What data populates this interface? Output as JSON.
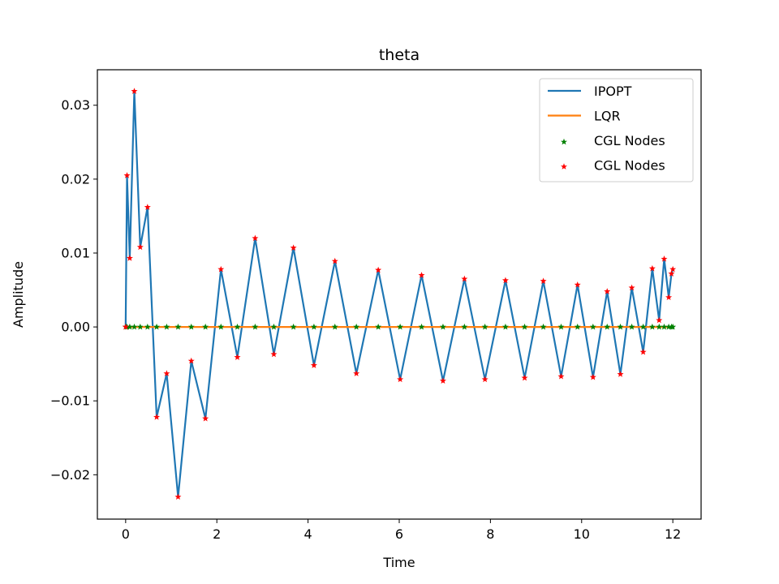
{
  "chart_data": {
    "type": "line",
    "title": "theta",
    "xlabel": "Time",
    "ylabel": "Amplitude",
    "xlim": [
      -0.62,
      12.62
    ],
    "ylim": [
      -0.026,
      0.0348
    ],
    "xticks": [
      0,
      2,
      4,
      6,
      8,
      10,
      12
    ],
    "xtick_labels": [
      "0",
      "2",
      "4",
      "6",
      "8",
      "10",
      "12"
    ],
    "yticks": [
      -0.02,
      -0.01,
      0.0,
      0.01,
      0.02,
      0.03
    ],
    "ytick_labels": [
      "−0.02",
      "−0.01",
      "0.00",
      "0.01",
      "0.02",
      "0.03"
    ],
    "grid": false,
    "legend_position": "top-right",
    "legend": [
      {
        "label": "IPOPT",
        "kind": "line",
        "color": "#1f77b4"
      },
      {
        "label": "LQR",
        "kind": "line",
        "color": "#ff7f0e"
      },
      {
        "label": "CGL Nodes",
        "kind": "marker",
        "color": "#008000"
      },
      {
        "label": "CGL Nodes",
        "kind": "marker",
        "color": "#ff0000"
      }
    ],
    "series": [
      {
        "name": "IPOPT",
        "color": "#1f77b4",
        "kind": "line",
        "x": [
          0,
          0.03,
          0.09,
          0.19,
          0.32,
          0.48,
          0.68,
          0.9,
          1.15,
          1.44,
          1.75,
          2.09,
          2.45,
          2.84,
          3.25,
          3.68,
          4.13,
          4.59,
          5.06,
          5.54,
          6.02,
          6.49,
          6.96,
          7.43,
          7.88,
          8.33,
          8.75,
          9.16,
          9.55,
          9.91,
          10.25,
          10.56,
          10.85,
          11.1,
          11.35,
          11.55,
          11.7,
          11.81,
          11.91,
          11.97,
          12.0
        ],
        "y": [
          0.0,
          0.0205,
          0.0093,
          0.0319,
          0.0108,
          0.0162,
          -0.0122,
          -0.0063,
          -0.023,
          -0.0046,
          -0.0124,
          0.0078,
          -0.0041,
          0.012,
          -0.0037,
          0.0107,
          -0.0052,
          0.0089,
          -0.0063,
          0.0077,
          -0.0071,
          0.007,
          -0.0073,
          0.0065,
          -0.0071,
          0.0063,
          -0.0069,
          0.0062,
          -0.0067,
          0.0057,
          -0.0068,
          0.0048,
          -0.0064,
          0.0053,
          -0.0034,
          0.0079,
          0.0009,
          0.0092,
          0.004,
          0.0072,
          0.0078
        ]
      },
      {
        "name": "LQR",
        "color": "#ff7f0e",
        "kind": "line",
        "x": [
          0,
          12.0
        ],
        "y": [
          0.0,
          0.0
        ]
      },
      {
        "name": "CGL Nodes",
        "color": "#008000",
        "kind": "marker",
        "x": [
          0,
          0.03,
          0.09,
          0.19,
          0.32,
          0.48,
          0.68,
          0.9,
          1.15,
          1.44,
          1.75,
          2.09,
          2.45,
          2.84,
          3.25,
          3.68,
          4.13,
          4.59,
          5.06,
          5.54,
          6.02,
          6.49,
          6.96,
          7.43,
          7.88,
          8.33,
          8.75,
          9.16,
          9.55,
          9.91,
          10.25,
          10.56,
          10.85,
          11.1,
          11.35,
          11.55,
          11.7,
          11.81,
          11.91,
          11.97,
          12.0
        ],
        "y": [
          0,
          0,
          0,
          0,
          0,
          0,
          0,
          0,
          0,
          0,
          0,
          0,
          0,
          0,
          0,
          0,
          0,
          0,
          0,
          0,
          0,
          0,
          0,
          0,
          0,
          0,
          0,
          0,
          0,
          0,
          0,
          0,
          0,
          0,
          0,
          0,
          0,
          0,
          0,
          0,
          0
        ]
      },
      {
        "name": "CGL Nodes",
        "color": "#ff0000",
        "kind": "marker",
        "x": [
          0,
          0.03,
          0.09,
          0.19,
          0.32,
          0.48,
          0.68,
          0.9,
          1.15,
          1.44,
          1.75,
          2.09,
          2.45,
          2.84,
          3.25,
          3.68,
          4.13,
          4.59,
          5.06,
          5.54,
          6.02,
          6.49,
          6.96,
          7.43,
          7.88,
          8.33,
          8.75,
          9.16,
          9.55,
          9.91,
          10.25,
          10.56,
          10.85,
          11.1,
          11.35,
          11.55,
          11.7,
          11.81,
          11.91,
          11.97,
          12.0
        ],
        "y": [
          0.0,
          0.0205,
          0.0093,
          0.0319,
          0.0108,
          0.0162,
          -0.0122,
          -0.0063,
          -0.023,
          -0.0046,
          -0.0124,
          0.0078,
          -0.0041,
          0.012,
          -0.0037,
          0.0107,
          -0.0052,
          0.0089,
          -0.0063,
          0.0077,
          -0.0071,
          0.007,
          -0.0073,
          0.0065,
          -0.0071,
          0.0063,
          -0.0069,
          0.0062,
          -0.0067,
          0.0057,
          -0.0068,
          0.0048,
          -0.0064,
          0.0053,
          -0.0034,
          0.0079,
          0.0009,
          0.0092,
          0.004,
          0.0072,
          0.0078
        ]
      }
    ]
  }
}
